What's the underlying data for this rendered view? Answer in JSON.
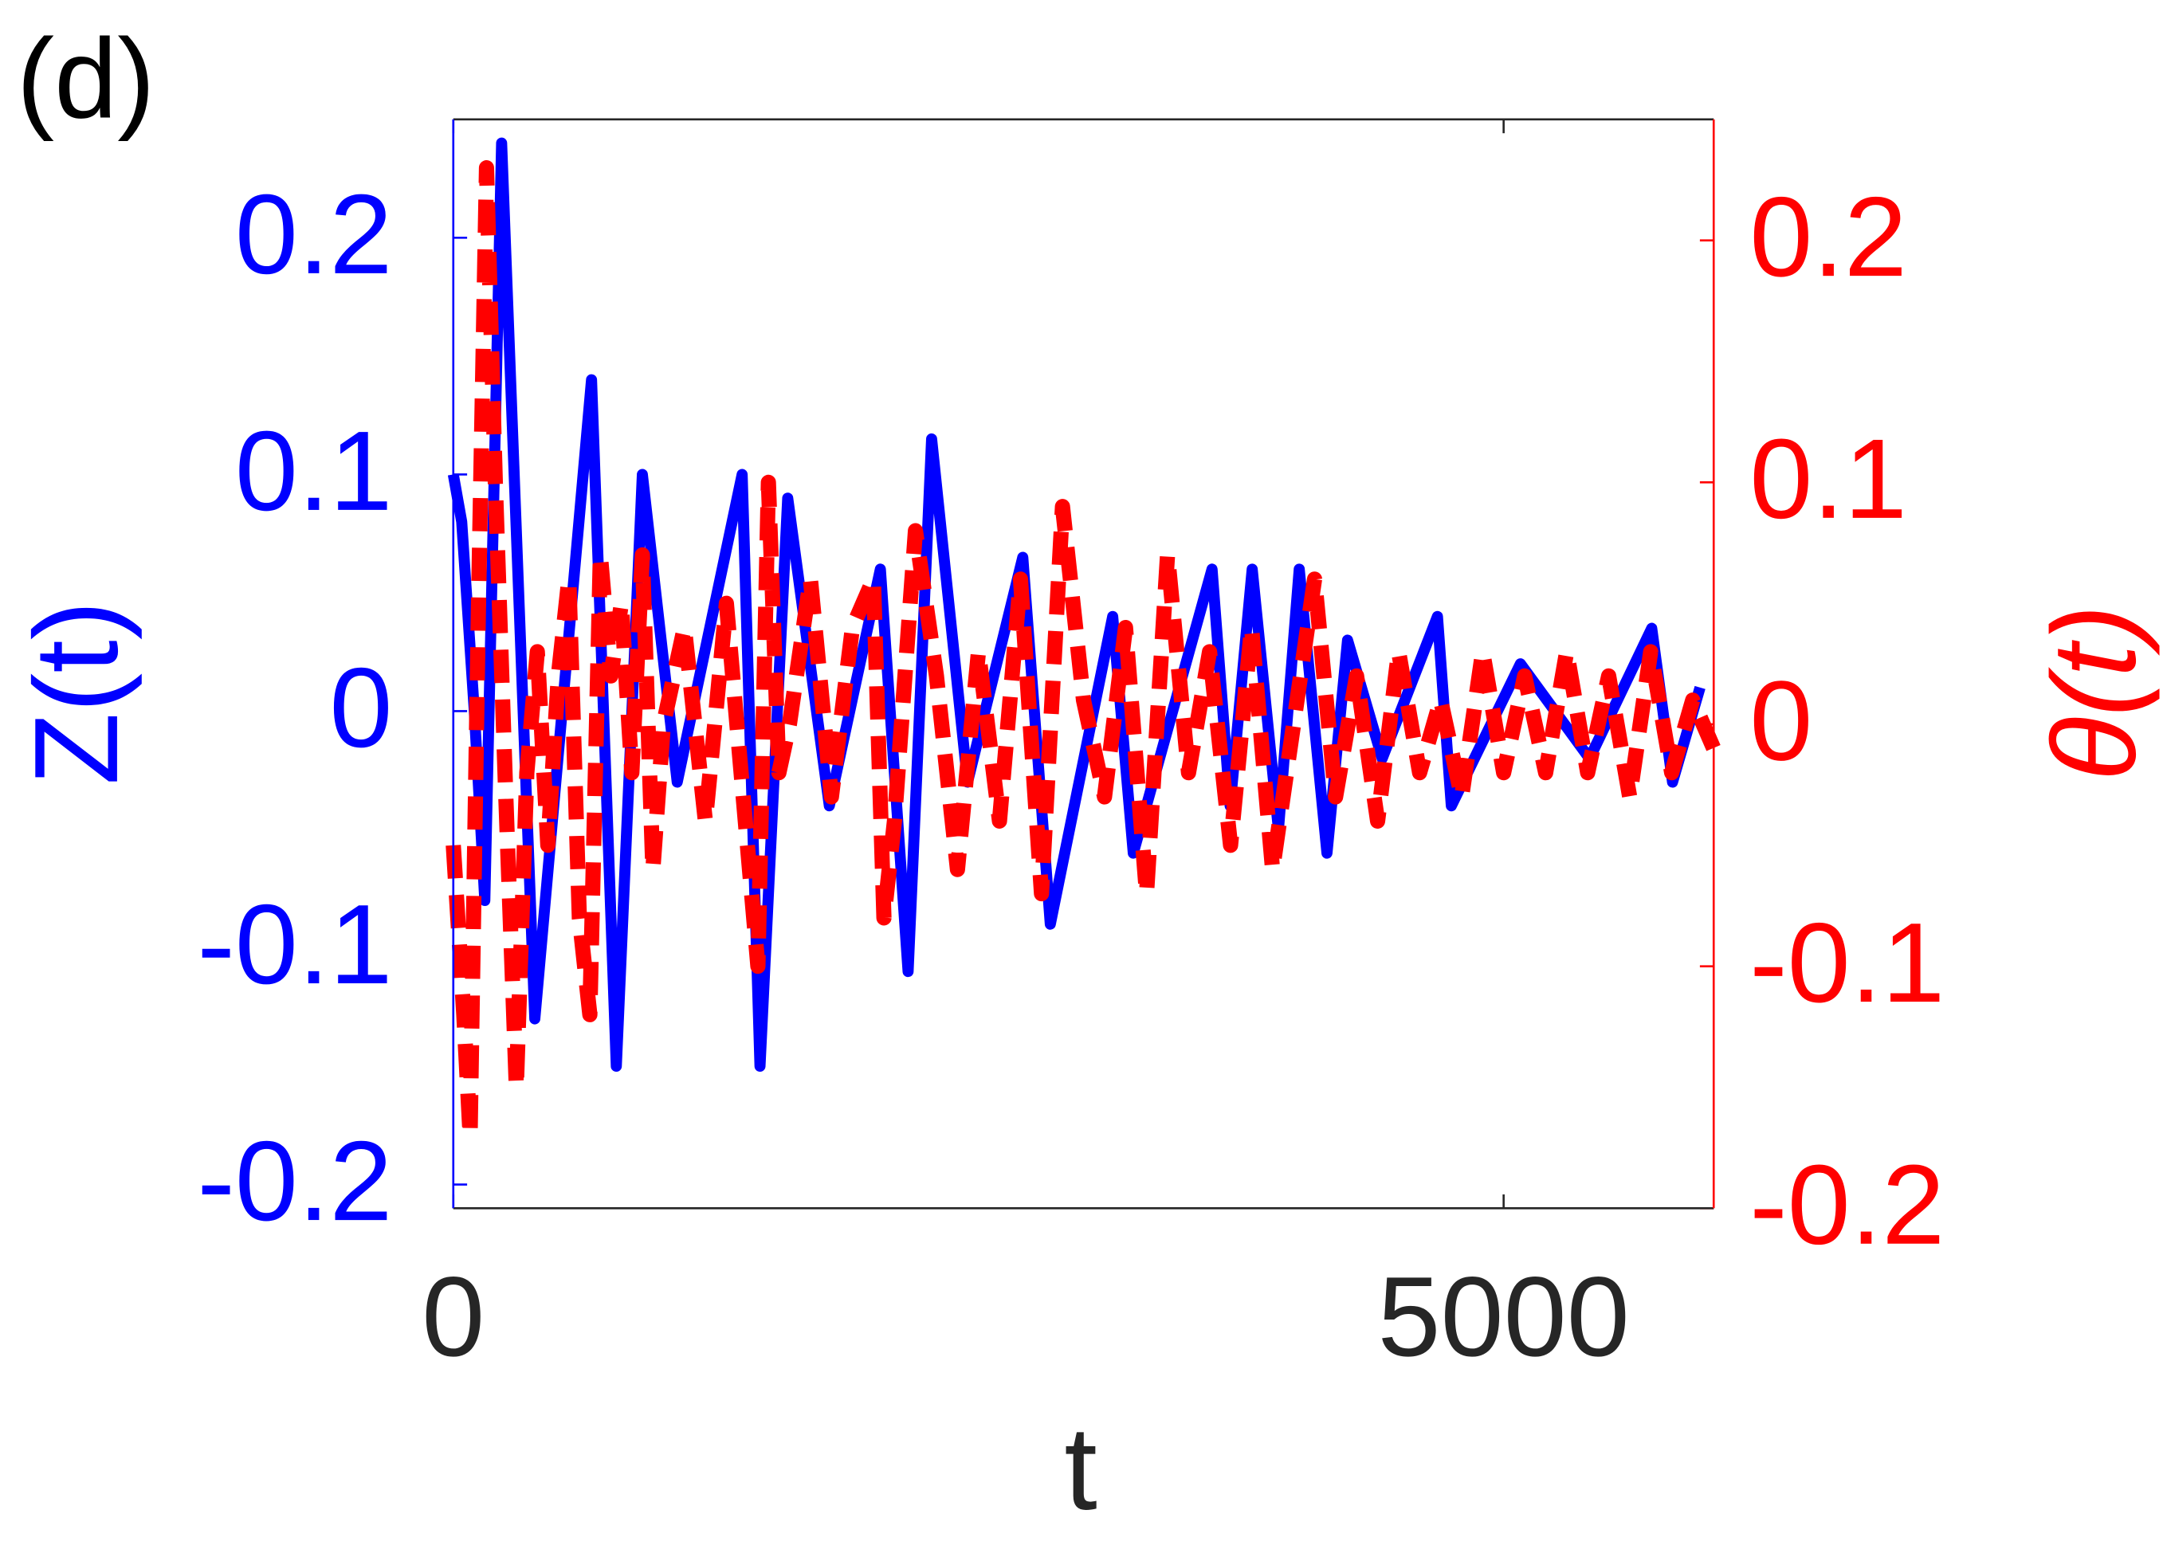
{
  "chart_data": {
    "type": "line",
    "panel_label": "(d)",
    "xlabel": "t",
    "ylabel": "Z(t)",
    "y2label": "θ(t)",
    "xlim": [
      0,
      6000
    ],
    "xticks": [
      0,
      5000
    ],
    "ylim": [
      -0.21,
      0.25
    ],
    "yticks": [
      -0.2,
      -0.1,
      0,
      0.1,
      0.2
    ],
    "y2lim": [
      -0.2,
      0.25
    ],
    "y2ticks": [
      -0.2,
      -0.1,
      0,
      0.1,
      0.2
    ],
    "ycolor": "#0000ff",
    "y2color": "#ff0000",
    "series": [
      {
        "name": "Z(t)",
        "color": "#0000ff",
        "dash": "solid",
        "x": [
          0,
          40,
          100,
          150,
          230,
          388,
          658,
          776,
          900,
          1066,
          1375,
          1460,
          1592,
          1790,
          2033,
          2165,
          2277,
          2448,
          2711,
          2842,
          3139,
          3237,
          3612,
          3698,
          3803,
          3928,
          4027,
          4159,
          4257,
          4422,
          4685,
          4751,
          5080,
          5409,
          5705,
          5804,
          5935
        ],
        "values": [
          0.1,
          0.08,
          0.0,
          -0.08,
          0.24,
          -0.13,
          0.14,
          -0.15,
          0.1,
          -0.03,
          0.1,
          -0.15,
          0.09,
          -0.04,
          0.06,
          -0.11,
          0.115,
          -0.03,
          0.065,
          -0.09,
          0.04,
          -0.06,
          0.06,
          -0.04,
          0.06,
          -0.05,
          0.06,
          -0.06,
          0.03,
          -0.02,
          0.04,
          -0.04,
          0.02,
          -0.02,
          0.035,
          -0.03,
          0.01
        ]
      },
      {
        "name": "θ(t)",
        "color": "#ff0000",
        "dash": "dashed",
        "axis": "y2",
        "x": [
          0,
          50,
          80,
          120,
          158,
          200,
          250,
          300,
          350,
          400,
          450,
          500,
          550,
          600,
          650,
          700,
          750,
          800,
          850,
          900,
          950,
          1000,
          1100,
          1200,
          1300,
          1400,
          1450,
          1500,
          1550,
          1600,
          1700,
          1800,
          1900,
          2000,
          2050,
          2100,
          2200,
          2300,
          2400,
          2500,
          2600,
          2700,
          2800,
          2900,
          3000,
          3100,
          3200,
          3300,
          3400,
          3500,
          3600,
          3700,
          3800,
          3900,
          4000,
          4100,
          4200,
          4300,
          4400,
          4500,
          4600,
          4700,
          4800,
          4900,
          5000,
          5100,
          5200,
          5300,
          5400,
          5500,
          5600,
          5700,
          5800,
          5900,
          6000
        ],
        "values": [
          -0.05,
          -0.12,
          -0.17,
          0.05,
          0.23,
          0.1,
          -0.03,
          -0.15,
          -0.02,
          0.03,
          -0.05,
          0.02,
          0.06,
          -0.08,
          -0.12,
          0.07,
          0.02,
          0.05,
          -0.02,
          0.07,
          -0.06,
          0.0,
          0.04,
          -0.04,
          0.05,
          -0.05,
          -0.1,
          0.1,
          -0.02,
          0.0,
          0.06,
          -0.03,
          0.04,
          0.06,
          -0.08,
          -0.04,
          0.08,
          0.02,
          -0.06,
          0.03,
          -0.04,
          0.06,
          -0.07,
          0.09,
          0.01,
          -0.03,
          0.04,
          -0.07,
          0.07,
          -0.02,
          0.03,
          -0.05,
          0.04,
          -0.06,
          0.0,
          0.06,
          -0.03,
          0.02,
          -0.04,
          0.03,
          -0.02,
          0.01,
          -0.03,
          0.03,
          -0.02,
          0.02,
          -0.02,
          0.03,
          -0.02,
          0.02,
          -0.03,
          0.03,
          -0.02,
          0.01,
          -0.01
        ]
      }
    ]
  }
}
